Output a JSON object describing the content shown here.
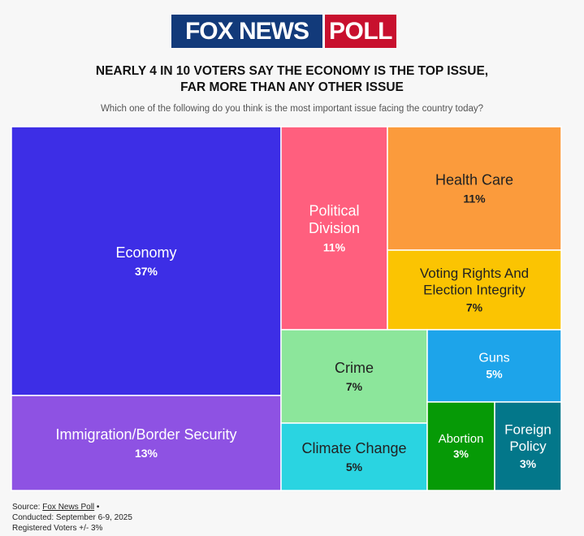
{
  "logo": {
    "fox": "FOX NEWS",
    "poll": "POLL"
  },
  "headline": {
    "line1": "NEARLY 4 IN 10 VOTERS SAY THE ECONOMY IS THE TOP ISSUE,",
    "line2": "FAR MORE THAN ANY OTHER ISSUE"
  },
  "subtitle": "Which one of the following do you think is the most important issue facing the country today?",
  "chart_data": {
    "type": "treemap",
    "title": "NEARLY 4 IN 10 VOTERS SAY THE ECONOMY IS THE TOP ISSUE, FAR MORE THAN ANY OTHER ISSUE",
    "question": "Which one of the following do you think is the most important issue facing the country today?",
    "items": [
      {
        "key": "economy",
        "label": [
          "Economy"
        ],
        "value": 37,
        "display": "37%",
        "color": "#3d2ee6",
        "text_color": "#ffffff"
      },
      {
        "key": "immigration",
        "label": [
          "Immigration/Border Security"
        ],
        "value": 13,
        "display": "13%",
        "color": "#8e52e3",
        "text_color": "#ffffff"
      },
      {
        "key": "political-division",
        "label": [
          "Political",
          "Division"
        ],
        "value": 11,
        "display": "11%",
        "color": "#ff5f7e",
        "text_color": "#ffffff"
      },
      {
        "key": "health-care",
        "label": [
          "Health Care"
        ],
        "value": 11,
        "display": "11%",
        "color": "#fb9b3c",
        "text_color": "#222222"
      },
      {
        "key": "voting-rights",
        "label": [
          "Voting Rights And",
          "Election Integrity"
        ],
        "value": 7,
        "display": "7%",
        "color": "#fbc402",
        "text_color": "#222222"
      },
      {
        "key": "crime",
        "label": [
          "Crime"
        ],
        "value": 7,
        "display": "7%",
        "color": "#8ce69b",
        "text_color": "#222222"
      },
      {
        "key": "guns",
        "label": [
          "Guns"
        ],
        "value": 5,
        "display": "5%",
        "color": "#1da4ea",
        "text_color": "#ffffff"
      },
      {
        "key": "climate-change",
        "label": [
          "Climate Change"
        ],
        "value": 5,
        "display": "5%",
        "color": "#2ad4e1",
        "text_color": "#222222"
      },
      {
        "key": "abortion",
        "label": [
          "Abortion"
        ],
        "value": 3,
        "display": "3%",
        "color": "#069a06",
        "text_color": "#ffffff"
      },
      {
        "key": "foreign-policy",
        "label": [
          "Foreign",
          "Policy"
        ],
        "value": 3,
        "display": "3%",
        "color": "#03778a",
        "text_color": "#ffffff"
      }
    ]
  },
  "footer": {
    "source_label": "Source: ",
    "source_link": "Fox News Poll",
    "source_suffix": " •",
    "conducted": "Conducted: September 6-9, 2025",
    "registered": "Registered Voters +/- 3%"
  }
}
